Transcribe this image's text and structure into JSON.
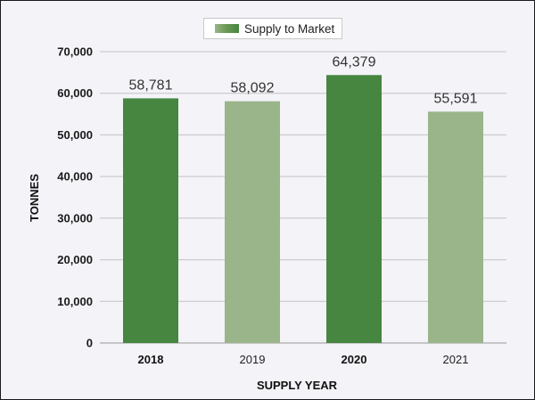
{
  "chart_data": {
    "type": "bar",
    "categories": [
      "2018",
      "2019",
      "2020",
      "2021"
    ],
    "series": [
      {
        "name": "Supply to Market",
        "values": [
          58781,
          58092,
          64379,
          55591
        ]
      }
    ],
    "value_labels": [
      "58,781",
      "58,092",
      "64,379",
      "55,591"
    ],
    "xlabel": "SUPPLY YEAR",
    "ylabel": "TONNES",
    "ylim": [
      0,
      70000
    ],
    "yticks": [
      0,
      10000,
      20000,
      30000,
      40000,
      50000,
      60000,
      70000
    ],
    "ytick_labels": [
      "0",
      "10,000",
      "20,000",
      "30,000",
      "40,000",
      "50,000",
      "60,000",
      "70,000"
    ],
    "bar_colors": [
      "#468640",
      "#9ab58a",
      "#468640",
      "#9ab58a"
    ],
    "category_bold": [
      true,
      false,
      true,
      false
    ],
    "grid": true,
    "legend_position": "top-center"
  },
  "legend": {
    "label": "Supply to Market"
  }
}
